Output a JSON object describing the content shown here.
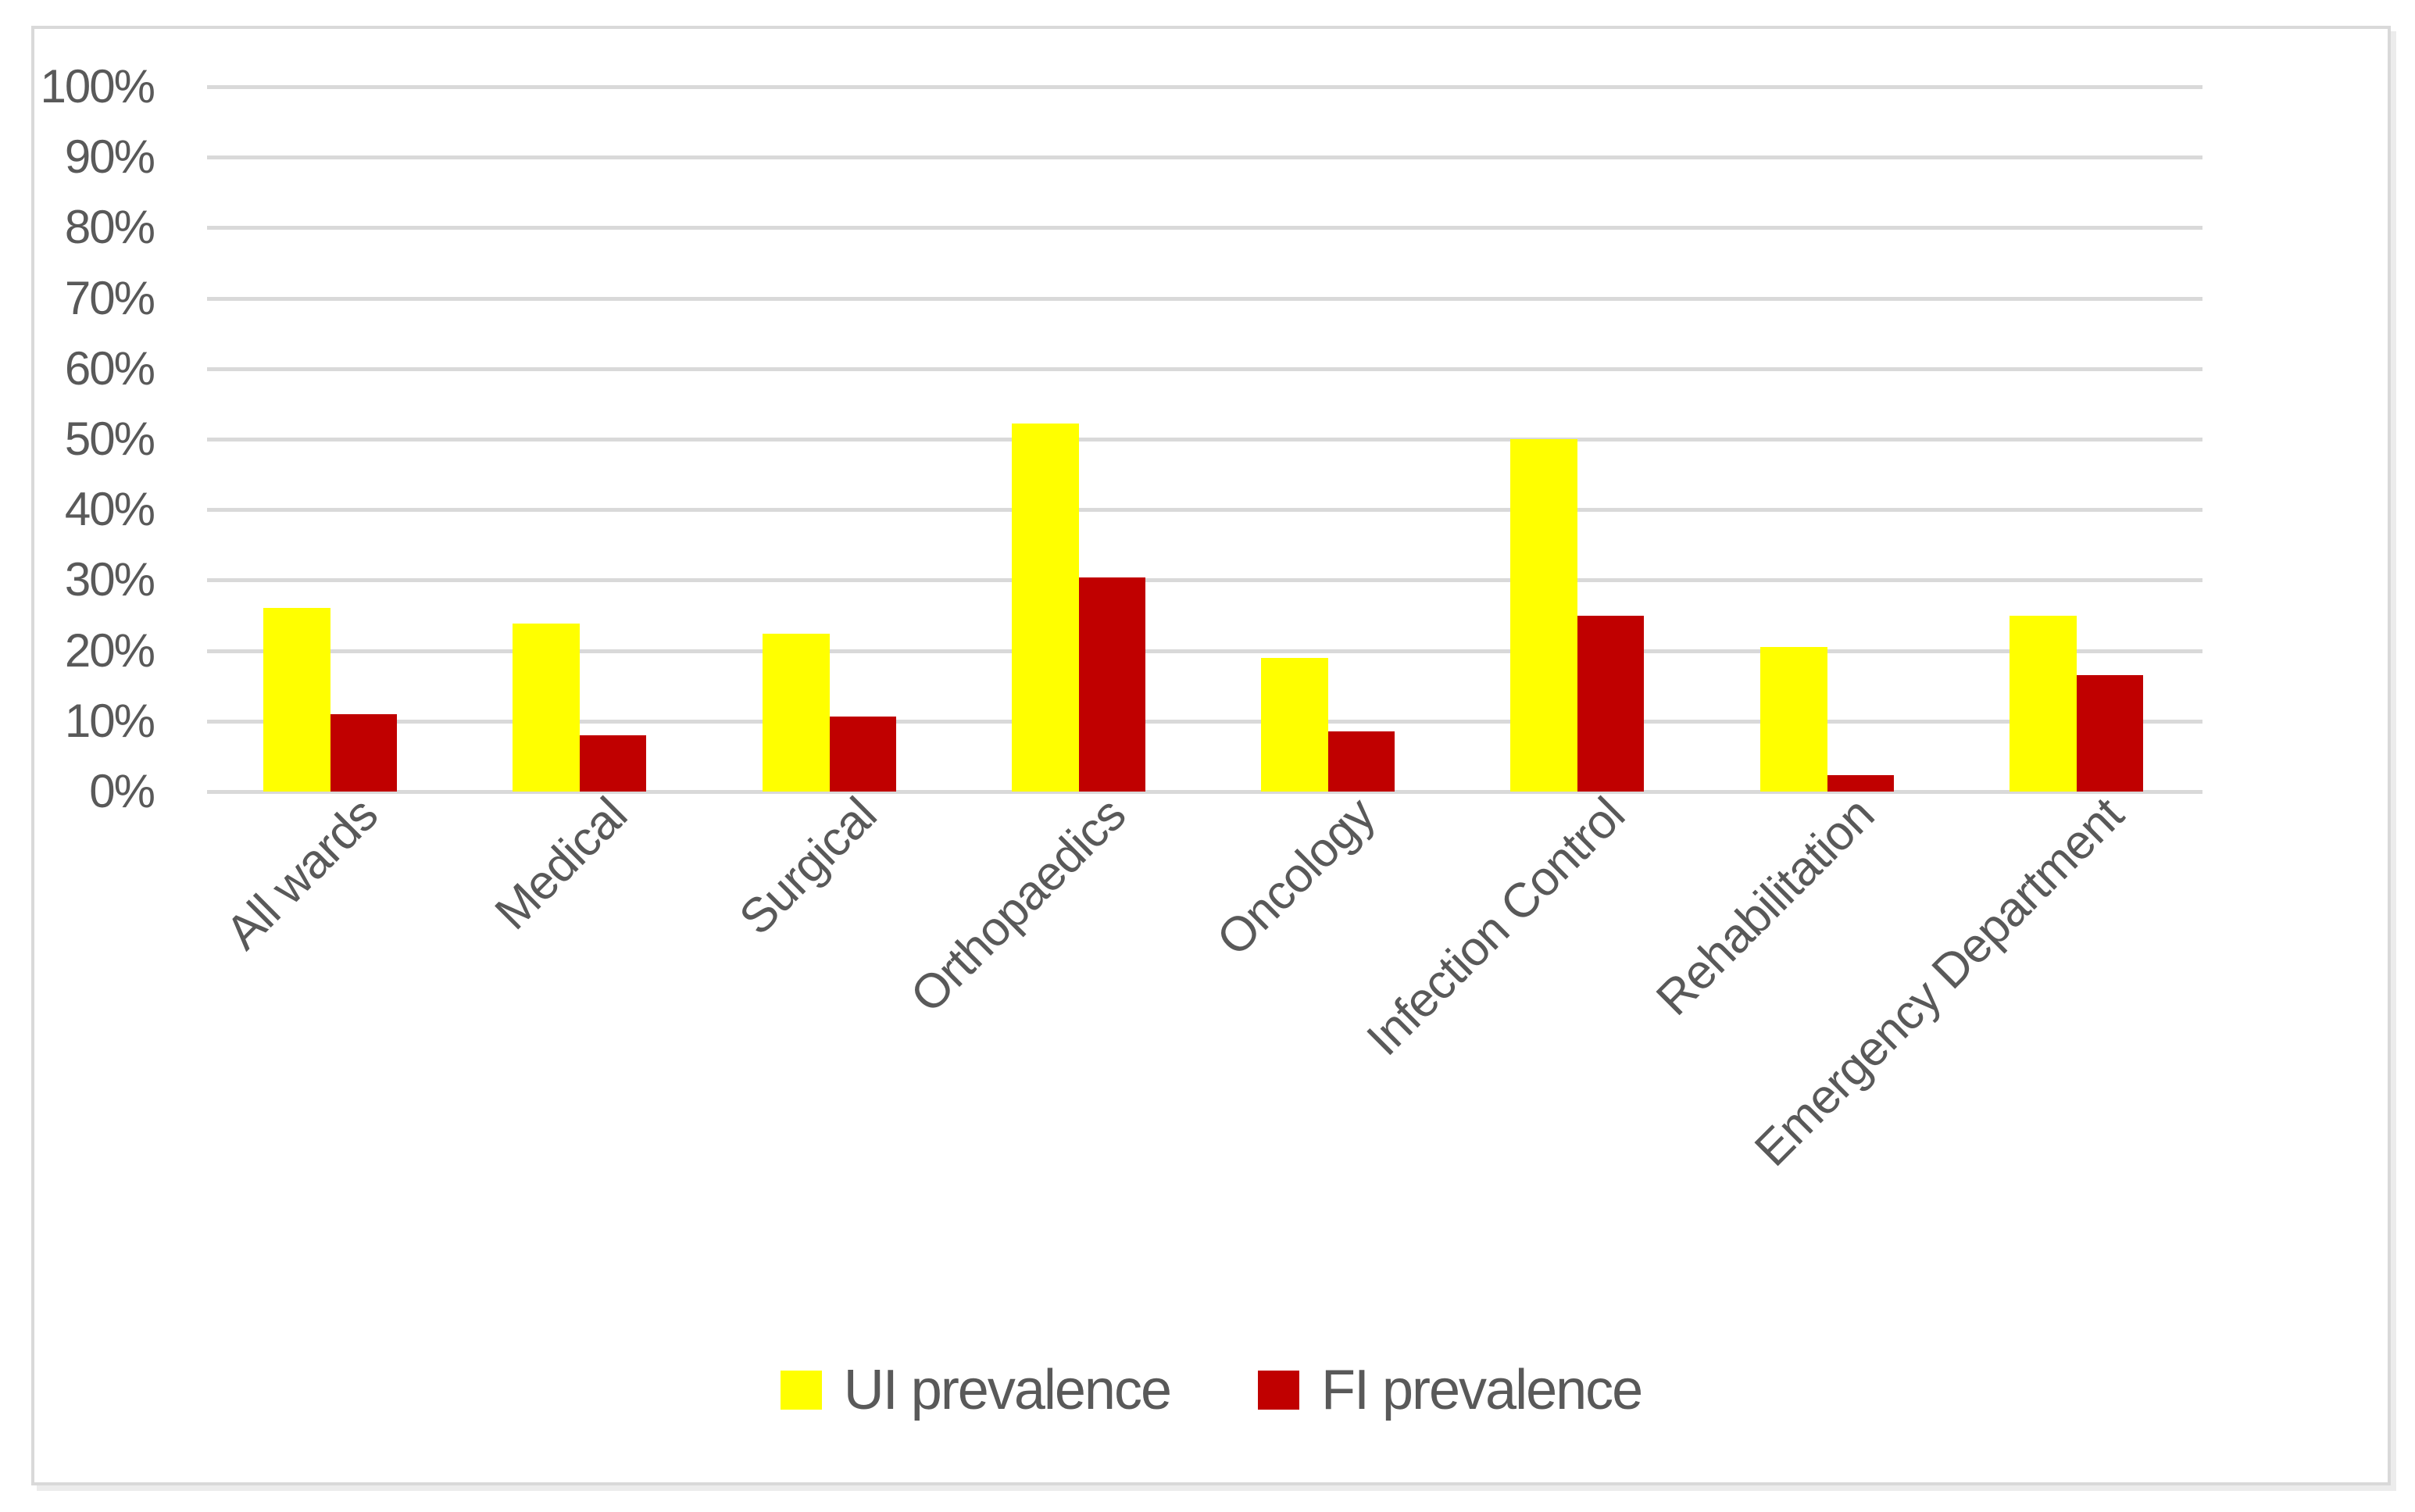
{
  "chart_data": {
    "type": "bar",
    "title": "",
    "xlabel": "",
    "ylabel": "",
    "categories": [
      "All wards",
      "Medical",
      "Surgical",
      "Orthopaedics",
      "Oncology",
      "Infection Control",
      "Rehabilitation",
      "Emergency Department"
    ],
    "series": [
      {
        "name": "UI prevalence",
        "color": "#ffff00",
        "values": [
          26,
          23.8,
          22.4,
          52.2,
          19,
          50,
          20.5,
          25
        ]
      },
      {
        "name": "FI prevalence",
        "color": "#c00000",
        "values": [
          11,
          8,
          10.6,
          30.4,
          8.5,
          25,
          2.3,
          16.5
        ]
      }
    ],
    "ylim": [
      0,
      100
    ],
    "ytick_labels_top_to_bottom": [
      "100%",
      "90%",
      "80%",
      "70%",
      "60%",
      "50%",
      "40%",
      "30%",
      "20%",
      "10%",
      "0%"
    ],
    "grid": true,
    "gridline_color": "#d9d9d9",
    "axis_text_color": "#595959",
    "legend_position": "bottom",
    "x_label_rotation_degrees": -45
  }
}
